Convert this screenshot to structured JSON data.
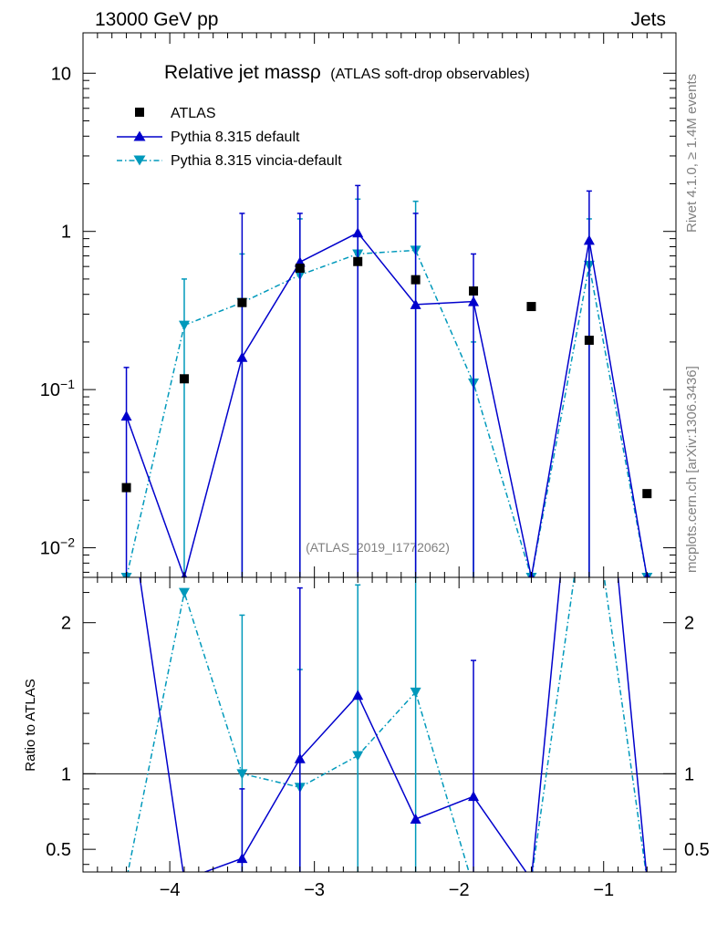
{
  "header": {
    "left": "13000 GeV pp",
    "right": "Jets"
  },
  "side_labels": {
    "rivet": "Rivet 4.1.0, ≥ 1.4M events",
    "mcplots": "mcplots.cern.ch [arXiv:1306.3436]"
  },
  "chart_data": {
    "type": "scatter",
    "title": "Relative jet massρ",
    "subtitle": "(ATLAS soft-drop observables)",
    "reference": "(ATLAS_2019_I1772062)",
    "xlim": [
      -4.6,
      -0.5
    ],
    "xticks": [
      -4,
      -3,
      -2,
      -1
    ],
    "xtick_labels": [
      "−4",
      "−3",
      "−2",
      "−1"
    ],
    "x": [
      -4.3,
      -3.9,
      -3.5,
      -3.1,
      -2.7,
      -2.3,
      -1.9,
      -1.5,
      -1.1,
      -0.7
    ],
    "main": {
      "yscale": "log",
      "ylim": [
        0.0065,
        18
      ],
      "yticks": [
        0.01,
        0.1,
        1,
        10
      ],
      "ytick_labels": {
        "base": [
          "10",
          "10",
          "1",
          "10"
        ],
        "exp": [
          "−2",
          "−1",
          "",
          ""
        ]
      }
    },
    "ratio": {
      "ylabel": "Ratio to ATLAS",
      "ylim": [
        0.35,
        2.3
      ],
      "yticks": [
        0.5,
        1,
        2
      ],
      "ytick_labels": [
        "0.5",
        "1",
        "2"
      ]
    },
    "legend": [
      {
        "key": "atlas",
        "label": "ATLAS"
      },
      {
        "key": "pythia",
        "label": "Pythia 8.315 default"
      },
      {
        "key": "vincia",
        "label": "Pythia 8.315 vincia-default"
      }
    ],
    "series": {
      "atlas": {
        "name": "ATLAS",
        "color": "#000000",
        "values": [
          0.024,
          0.117,
          0.355,
          0.585,
          0.645,
          0.495,
          0.42,
          0.335,
          0.205,
          0.022
        ]
      },
      "pythia": {
        "name": "Pythia 8.315 default",
        "color": "#0000cc",
        "values": [
          0.068,
          0.0065,
          0.16,
          0.64,
          0.98,
          0.345,
          0.36,
          0.0065,
          0.88,
          0.0065
        ],
        "err_up": [
          0.138,
          null,
          1.3,
          1.3,
          1.95,
          1.3,
          0.72,
          null,
          1.8,
          null
        ],
        "ratio": [
          2.9,
          0.3,
          0.44,
          1.1,
          1.52,
          0.7,
          0.85,
          0.3,
          4.3,
          0.3
        ],
        "ratio_err_up": [
          null,
          null,
          0.9,
          2.23,
          null,
          null,
          1.75,
          null,
          null,
          null
        ]
      },
      "vincia": {
        "name": "Pythia 8.315 vincia-default",
        "color": "#0099bb",
        "values": [
          0.0065,
          0.255,
          0.355,
          0.53,
          0.72,
          0.76,
          0.11,
          0.0065,
          0.61,
          0.0065
        ],
        "err_up": [
          null,
          0.5,
          0.72,
          1.2,
          1.6,
          1.55,
          0.2,
          null,
          1.2,
          null
        ],
        "ratio": [
          0.3,
          2.2,
          1.0,
          0.91,
          1.12,
          1.54,
          0.25,
          0.3,
          3.0,
          0.3
        ],
        "ratio_err_up": [
          null,
          null,
          2.05,
          1.69,
          2.25,
          2.3,
          null,
          null,
          null,
          null
        ]
      }
    }
  }
}
